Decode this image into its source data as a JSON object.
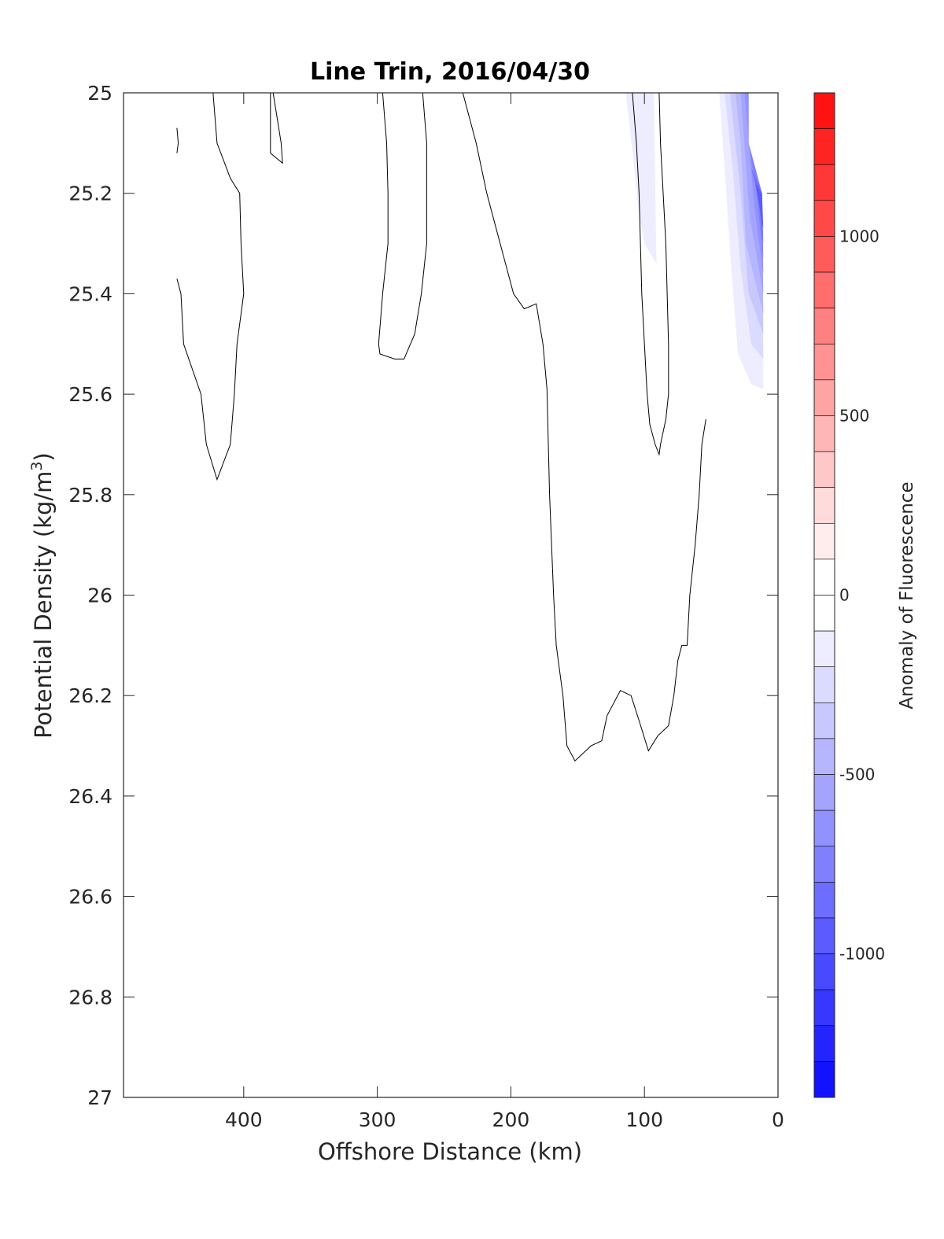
{
  "chart_data": {
    "type": "contour",
    "title": "Line Trin, 2016/04/30",
    "xlabel": "Offshore Distance (km)",
    "ylabel_main": "Potential Density (kg/m",
    "ylabel_sup": "3",
    "ylabel_close": ")",
    "xlim": [
      490,
      0
    ],
    "ylim": [
      25,
      27
    ],
    "y_reversed": true,
    "x_reversed": true,
    "xticks": [
      400,
      300,
      200,
      100,
      0
    ],
    "yticks": [
      25,
      25.2,
      25.4,
      25.6,
      25.8,
      26,
      26.2,
      26.4,
      26.6,
      26.8,
      27
    ],
    "ytick_labels": [
      "25",
      "25.2",
      "25.4",
      "25.6",
      "25.8",
      "26",
      "26.2",
      "26.4",
      "26.6",
      "26.8",
      "27"
    ],
    "colorbar": {
      "label": "Anomaly of Fluorescence",
      "range": [
        -1400,
        1400
      ],
      "step": 100,
      "ticks": [
        1000,
        500,
        0,
        -500,
        -1000
      ],
      "tick_labels": [
        "1000",
        "500",
        "0",
        "-500",
        "-1000"
      ],
      "low_color": "#0000ff",
      "high_color": "#ff0000"
    },
    "filled_regions": [
      {
        "level": -100,
        "points": [
          [
            114,
            25.0
          ],
          [
            93,
            25.0
          ],
          [
            91,
            25.34
          ],
          [
            100,
            25.3
          ],
          [
            104,
            25.24
          ],
          [
            108,
            25.14
          ],
          [
            114,
            25.0
          ]
        ]
      },
      {
        "level": -100,
        "points": [
          [
            44,
            25.0
          ],
          [
            22,
            25.0
          ],
          [
            22,
            25.1
          ],
          [
            12,
            25.2
          ],
          [
            11,
            25.59
          ],
          [
            20,
            25.58
          ],
          [
            30,
            25.52
          ],
          [
            35,
            25.35
          ],
          [
            40,
            25.15
          ],
          [
            44,
            25.0
          ]
        ]
      },
      {
        "level": -200,
        "points": [
          [
            40,
            25.0
          ],
          [
            22,
            25.0
          ],
          [
            22,
            25.1
          ],
          [
            12,
            25.2
          ],
          [
            11,
            25.53
          ],
          [
            20,
            25.5
          ],
          [
            28,
            25.35
          ],
          [
            34,
            25.15
          ],
          [
            40,
            25.0
          ]
        ]
      },
      {
        "level": -300,
        "points": [
          [
            36,
            25.0
          ],
          [
            22,
            25.0
          ],
          [
            22,
            25.1
          ],
          [
            12,
            25.2
          ],
          [
            11,
            25.48
          ],
          [
            22,
            25.4
          ],
          [
            28,
            25.2
          ],
          [
            36,
            25.0
          ]
        ]
      },
      {
        "level": -400,
        "points": [
          [
            32,
            25.0
          ],
          [
            22,
            25.0
          ],
          [
            22,
            25.1
          ],
          [
            12,
            25.2
          ],
          [
            11,
            25.44
          ],
          [
            24,
            25.3
          ],
          [
            28,
            25.1
          ],
          [
            32,
            25.0
          ]
        ]
      },
      {
        "level": -500,
        "points": [
          [
            28,
            25.0
          ],
          [
            22,
            25.0
          ],
          [
            22,
            25.1
          ],
          [
            12,
            25.2
          ],
          [
            11,
            25.4
          ],
          [
            21,
            25.25
          ],
          [
            28,
            25.0
          ]
        ]
      },
      {
        "level": -600,
        "points": [
          [
            25,
            25.0
          ],
          [
            22,
            25.0
          ],
          [
            22,
            25.1
          ],
          [
            12,
            25.2
          ],
          [
            11,
            25.36
          ],
          [
            18,
            25.22
          ],
          [
            25,
            25.0
          ]
        ]
      },
      {
        "level": -700,
        "points": [
          [
            22,
            25.1
          ],
          [
            12,
            25.2
          ],
          [
            11,
            25.33
          ],
          [
            16,
            25.2
          ],
          [
            22,
            25.1
          ]
        ]
      },
      {
        "level": -800,
        "points": [
          [
            20,
            25.15
          ],
          [
            12,
            25.2
          ],
          [
            11,
            25.3
          ],
          [
            15,
            25.2
          ],
          [
            20,
            25.15
          ]
        ]
      },
      {
        "level": -900,
        "points": [
          [
            17,
            25.18
          ],
          [
            12,
            25.2
          ],
          [
            11,
            25.27
          ],
          [
            17,
            25.18
          ]
        ]
      }
    ],
    "contour_lines": [
      [
        [
          450,
          25.07
        ],
        [
          449,
          25.1
        ],
        [
          450,
          25.12
        ]
      ],
      [
        [
          450,
          25.37
        ],
        [
          447,
          25.4
        ],
        [
          445,
          25.5
        ],
        [
          432,
          25.6
        ],
        [
          428,
          25.7
        ],
        [
          420,
          25.77
        ],
        [
          410,
          25.7
        ],
        [
          407,
          25.6
        ],
        [
          405,
          25.5
        ],
        [
          400,
          25.4
        ],
        [
          402,
          25.3
        ],
        [
          403,
          25.2
        ],
        [
          410,
          25.17
        ],
        [
          420,
          25.1
        ],
        [
          423,
          25.0
        ]
      ],
      [
        [
          380,
          25.0
        ],
        [
          380,
          25.12
        ],
        [
          371,
          25.14
        ],
        [
          372,
          25.1
        ],
        [
          378,
          25.0
        ]
      ],
      [
        [
          296,
          25.0
        ],
        [
          293,
          25.1
        ],
        [
          292,
          25.2
        ],
        [
          292,
          25.3
        ],
        [
          296,
          25.4
        ],
        [
          299,
          25.5
        ],
        [
          298,
          25.52
        ],
        [
          287,
          25.53
        ],
        [
          280,
          25.53
        ],
        [
          272,
          25.48
        ],
        [
          267,
          25.4
        ],
        [
          263,
          25.3
        ],
        [
          263,
          25.2
        ],
        [
          263,
          25.1
        ],
        [
          266,
          25.0
        ]
      ],
      [
        [
          236,
          25.0
        ],
        [
          226,
          25.1
        ],
        [
          218,
          25.2
        ],
        [
          208,
          25.3
        ],
        [
          198,
          25.4
        ],
        [
          190,
          25.43
        ],
        [
          181,
          25.42
        ],
        [
          176,
          25.5
        ],
        [
          173,
          25.59
        ],
        [
          171,
          25.8
        ],
        [
          168,
          26.0
        ],
        [
          166,
          26.1
        ],
        [
          161,
          26.2
        ],
        [
          158,
          26.3
        ],
        [
          152,
          26.33
        ],
        [
          140,
          26.3
        ],
        [
          132,
          26.29
        ],
        [
          128,
          26.24
        ],
        [
          118,
          26.19
        ],
        [
          110,
          26.2
        ],
        [
          104,
          26.25
        ],
        [
          97,
          26.31
        ],
        [
          90,
          26.28
        ],
        [
          82,
          26.26
        ],
        [
          78,
          26.2
        ],
        [
          75,
          26.13
        ],
        [
          72,
          26.1
        ],
        [
          68,
          26.1
        ],
        [
          66,
          26.0
        ],
        [
          62,
          25.9
        ],
        [
          59,
          25.8
        ],
        [
          57,
          25.7
        ],
        [
          54,
          25.65
        ]
      ],
      [
        [
          109,
          25.0
        ],
        [
          106,
          25.1
        ],
        [
          104,
          25.2
        ],
        [
          103,
          25.3
        ],
        [
          102,
          25.4
        ],
        [
          100,
          25.5
        ],
        [
          98,
          25.6
        ],
        [
          96,
          25.66
        ],
        [
          92,
          25.7
        ],
        [
          89,
          25.72
        ],
        [
          88,
          25.7
        ],
        [
          84,
          25.65
        ],
        [
          82,
          25.6
        ],
        [
          82,
          25.5
        ],
        [
          83,
          25.4
        ],
        [
          84,
          25.3
        ],
        [
          86,
          25.2
        ],
        [
          88,
          25.1
        ],
        [
          89,
          25.0
        ]
      ]
    ]
  }
}
